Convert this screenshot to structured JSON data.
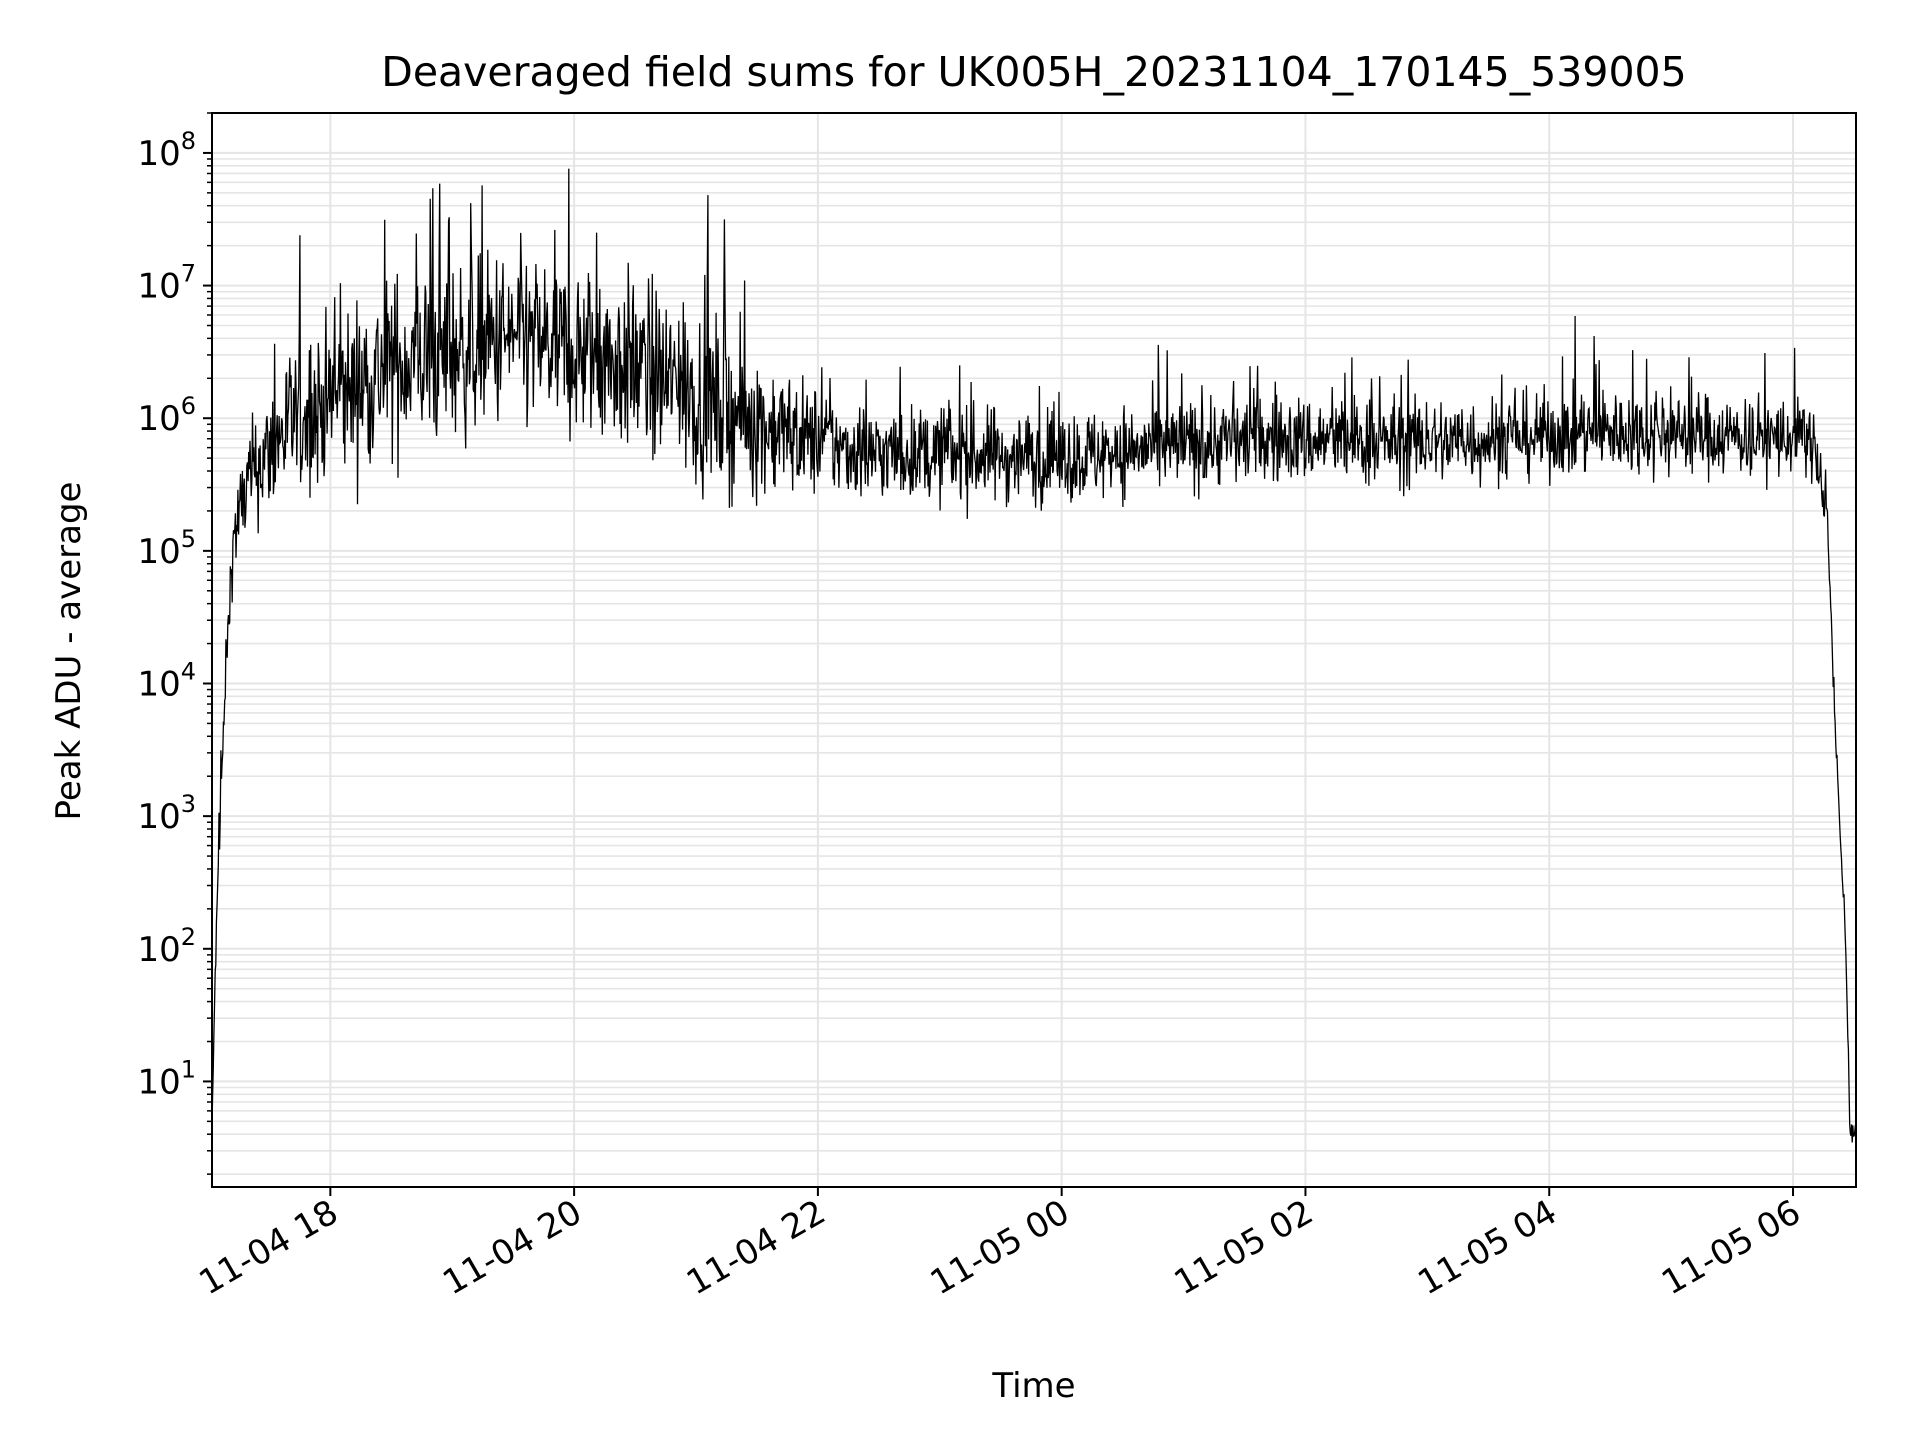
{
  "chart_data": {
    "type": "line",
    "title": "Deaveraged field sums for UK005H_20231104_170145_539005",
    "xlabel": "Time",
    "ylabel": "Peak ADU - average",
    "x_start": "2023-11-04 17:01:45",
    "x_end": "2023-11-05 06:31:00",
    "xlim": [
      "2023-11-04 17:01:45",
      "2023-11-05 06:31:00"
    ],
    "xticks": [
      {
        "time": "2023-11-04 18:00",
        "label": "11-04 18"
      },
      {
        "time": "2023-11-04 20:00",
        "label": "11-04 20"
      },
      {
        "time": "2023-11-04 22:00",
        "label": "11-04 22"
      },
      {
        "time": "2023-11-05 00:00",
        "label": "11-05 00"
      },
      {
        "time": "2023-11-05 02:00",
        "label": "11-05 02"
      },
      {
        "time": "2023-11-05 04:00",
        "label": "11-05 04"
      },
      {
        "time": "2023-11-05 06:00",
        "label": "11-05 06"
      }
    ],
    "y_scale": "log",
    "ylim": [
      1.6,
      200000000
    ],
    "yticks": [
      {
        "value": 10,
        "base": "10",
        "exp": "1"
      },
      {
        "value": 100,
        "base": "10",
        "exp": "2"
      },
      {
        "value": 1000,
        "base": "10",
        "exp": "3"
      },
      {
        "value": 10000,
        "base": "10",
        "exp": "4"
      },
      {
        "value": 100000,
        "base": "10",
        "exp": "5"
      },
      {
        "value": 1000000,
        "base": "10",
        "exp": "6"
      },
      {
        "value": 10000000,
        "base": "10",
        "exp": "7"
      },
      {
        "value": 100000000,
        "base": "10",
        "exp": "8"
      }
    ],
    "grid": true,
    "line_color": "#000000",
    "grid_color": "#e5e5e5",
    "envelope": [
      {
        "t": "2023-11-04 17:01:45",
        "v": 4
      },
      {
        "t": "2023-11-04 17:03",
        "v": 40
      },
      {
        "t": "2023-11-04 17:05",
        "v": 500
      },
      {
        "t": "2023-11-04 17:07",
        "v": 3000
      },
      {
        "t": "2023-11-04 17:09",
        "v": 15000
      },
      {
        "t": "2023-11-04 17:12",
        "v": 120000
      },
      {
        "t": "2023-11-04 17:20",
        "v": 350000
      },
      {
        "t": "2023-11-04 17:40",
        "v": 900000
      },
      {
        "t": "2023-11-04 18:30",
        "v": 2500000
      },
      {
        "t": "2023-11-04 19:30",
        "v": 4000000
      },
      {
        "t": "2023-11-04 20:30",
        "v": 2500000
      },
      {
        "t": "2023-11-04 21:30",
        "v": 900000
      },
      {
        "t": "2023-11-04 22:20",
        "v": 550000
      },
      {
        "t": "2023-11-05 00:00",
        "v": 500000
      },
      {
        "t": "2023-11-05 01:30",
        "v": 700000
      },
      {
        "t": "2023-11-05 03:00",
        "v": 650000
      },
      {
        "t": "2023-11-05 04:30",
        "v": 800000
      },
      {
        "t": "2023-11-05 06:10",
        "v": 700000
      },
      {
        "t": "2023-11-05 06:17",
        "v": 150000
      },
      {
        "t": "2023-11-05 06:20",
        "v": 10000
      },
      {
        "t": "2023-11-05 06:23",
        "v": 800
      },
      {
        "t": "2023-11-05 06:26",
        "v": 100
      },
      {
        "t": "2023-11-05 06:28",
        "v": 4
      },
      {
        "t": "2023-11-05 06:31",
        "v": 4
      }
    ],
    "noise_spread_decades": [
      {
        "t": "2023-11-04 17:01:45",
        "d": 0.1
      },
      {
        "t": "2023-11-04 17:15",
        "d": 0.35
      },
      {
        "t": "2023-11-04 17:40",
        "d": 0.55
      },
      {
        "t": "2023-11-04 18:30",
        "d": 0.65
      },
      {
        "t": "2023-11-04 21:00",
        "d": 0.65
      },
      {
        "t": "2023-11-04 22:10",
        "d": 0.35
      },
      {
        "t": "2023-11-05 06:12",
        "d": 0.3
      },
      {
        "t": "2023-11-05 06:20",
        "d": 0.1
      },
      {
        "t": "2023-11-05 06:31",
        "d": 0.05
      }
    ]
  }
}
